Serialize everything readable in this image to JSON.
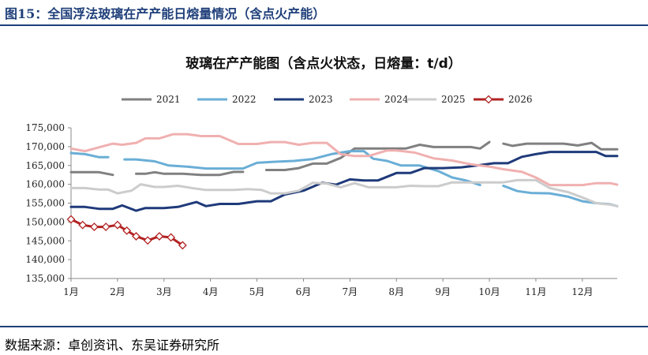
{
  "figure": {
    "title": "图15：全国浮法玻璃在产产能日熔量情况（含点火产能）",
    "source": "数据来源：卓创资讯、东吴证券研究所"
  },
  "chart_data": {
    "type": "line",
    "title": "玻璃在产产能图（含点火状态，日熔量：t/d）",
    "xlabel": "",
    "ylabel": "",
    "x_ticks": [
      "1月",
      "2月",
      "3月",
      "4月",
      "5月",
      "6月",
      "7月",
      "8月",
      "9月",
      "10月",
      "11月",
      "12月"
    ],
    "x_range": [
      1,
      12.75
    ],
    "ylim": [
      135000,
      175000
    ],
    "y_ticks": [
      135000,
      140000,
      145000,
      150000,
      155000,
      160000,
      165000,
      170000,
      175000
    ],
    "legend_position": "top",
    "grid": false,
    "series": [
      {
        "name": "2021",
        "color": "#808080",
        "marker": "none",
        "points": [
          [
            1.0,
            163200
          ],
          [
            1.3,
            163200
          ],
          [
            1.6,
            163200
          ],
          [
            1.9,
            162500
          ],
          null,
          [
            2.4,
            162800
          ],
          [
            2.6,
            162800
          ],
          [
            2.8,
            163200
          ],
          [
            3.0,
            162800
          ],
          [
            3.4,
            162800
          ],
          [
            3.8,
            162500
          ],
          [
            4.2,
            162500
          ],
          [
            4.5,
            163300
          ],
          [
            4.7,
            163300
          ],
          null,
          [
            5.2,
            163800
          ],
          [
            5.6,
            163800
          ],
          [
            5.9,
            164300
          ],
          [
            6.2,
            165500
          ],
          [
            6.5,
            165500
          ],
          [
            6.8,
            167000
          ],
          [
            7.1,
            169500
          ],
          [
            7.5,
            169500
          ],
          [
            7.9,
            169500
          ],
          [
            8.2,
            169500
          ],
          [
            8.5,
            170500
          ],
          [
            8.8,
            169900
          ],
          [
            9.2,
            169900
          ],
          [
            9.6,
            169900
          ],
          [
            9.8,
            169500
          ],
          [
            10.0,
            171200
          ],
          null,
          [
            10.3,
            170800
          ],
          [
            10.5,
            170200
          ],
          [
            10.8,
            170800
          ],
          [
            11.2,
            170800
          ],
          [
            11.6,
            170800
          ],
          [
            11.9,
            170300
          ],
          [
            12.2,
            171000
          ],
          [
            12.4,
            169300
          ],
          [
            12.75,
            169300
          ]
        ]
      },
      {
        "name": "2022",
        "color": "#6aaed6",
        "marker": "none",
        "points": [
          [
            1.0,
            168300
          ],
          [
            1.3,
            168000
          ],
          [
            1.6,
            167200
          ],
          [
            1.8,
            167200
          ],
          null,
          [
            2.15,
            166600
          ],
          [
            2.4,
            166600
          ],
          [
            2.8,
            166100
          ],
          [
            3.1,
            165000
          ],
          [
            3.5,
            164700
          ],
          [
            3.9,
            164200
          ],
          [
            4.3,
            164200
          ],
          [
            4.7,
            164200
          ],
          [
            5.0,
            165700
          ],
          [
            5.4,
            166000
          ],
          [
            5.8,
            166200
          ],
          [
            6.2,
            166700
          ],
          [
            6.6,
            168000
          ],
          [
            7.0,
            168800
          ],
          [
            7.3,
            168800
          ],
          [
            7.5,
            166800
          ],
          [
            7.8,
            166200
          ],
          [
            8.1,
            165000
          ],
          [
            8.5,
            165000
          ],
          [
            8.9,
            163500
          ],
          [
            9.2,
            161800
          ],
          [
            9.5,
            161000
          ],
          [
            9.8,
            159800
          ],
          null,
          [
            10.3,
            159600
          ],
          [
            10.6,
            158200
          ],
          [
            10.9,
            157700
          ],
          [
            11.3,
            157600
          ],
          [
            11.7,
            156700
          ],
          [
            12.0,
            155500
          ],
          [
            12.3,
            155000
          ],
          [
            12.6,
            154700
          ],
          [
            12.75,
            154200
          ]
        ]
      },
      {
        "name": "2023",
        "color": "#1f3a7a",
        "marker": "none",
        "points": [
          [
            1.0,
            154000
          ],
          [
            1.3,
            154000
          ],
          [
            1.6,
            153500
          ],
          [
            1.9,
            153500
          ],
          [
            2.1,
            154400
          ],
          [
            2.4,
            153000
          ],
          [
            2.6,
            153700
          ],
          [
            3.0,
            153700
          ],
          [
            3.3,
            154000
          ],
          [
            3.7,
            155300
          ],
          [
            3.9,
            154200
          ],
          [
            4.2,
            154800
          ],
          [
            4.6,
            154800
          ],
          [
            5.0,
            155500
          ],
          [
            5.3,
            155500
          ],
          [
            5.6,
            157300
          ],
          [
            6.0,
            158300
          ],
          [
            6.4,
            160400
          ],
          [
            6.7,
            159900
          ],
          [
            7.0,
            161300
          ],
          [
            7.3,
            161000
          ],
          [
            7.6,
            161000
          ],
          [
            8.0,
            163000
          ],
          [
            8.3,
            163000
          ],
          [
            8.6,
            164300
          ],
          [
            9.0,
            164300
          ],
          [
            9.4,
            164500
          ],
          [
            9.8,
            165100
          ],
          [
            10.1,
            165600
          ],
          [
            10.4,
            165600
          ],
          [
            10.7,
            167300
          ],
          [
            11.0,
            168000
          ],
          [
            11.3,
            168600
          ],
          [
            11.7,
            168600
          ],
          [
            12.0,
            168600
          ],
          [
            12.3,
            168600
          ],
          [
            12.5,
            167500
          ],
          [
            12.75,
            167500
          ]
        ]
      },
      {
        "name": "2024",
        "color": "#f0b0b0",
        "marker": "none",
        "points": [
          [
            1.0,
            169500
          ],
          [
            1.3,
            168800
          ],
          [
            1.6,
            169800
          ],
          [
            1.9,
            170800
          ],
          [
            2.1,
            170500
          ],
          [
            2.4,
            171000
          ],
          [
            2.6,
            172200
          ],
          [
            2.9,
            172200
          ],
          [
            3.2,
            173300
          ],
          [
            3.5,
            173300
          ],
          [
            3.8,
            172800
          ],
          [
            4.2,
            172800
          ],
          [
            4.6,
            170700
          ],
          [
            5.0,
            170700
          ],
          [
            5.3,
            171200
          ],
          [
            5.6,
            171200
          ],
          [
            5.9,
            170500
          ],
          [
            6.2,
            171000
          ],
          [
            6.5,
            171000
          ],
          [
            6.8,
            168000
          ],
          [
            7.1,
            167500
          ],
          [
            7.4,
            167500
          ],
          [
            7.8,
            169000
          ],
          [
            8.0,
            169000
          ],
          [
            8.4,
            168400
          ],
          [
            8.8,
            166900
          ],
          [
            9.2,
            166300
          ],
          [
            9.6,
            165300
          ],
          [
            10.0,
            164700
          ],
          [
            10.3,
            164000
          ],
          [
            10.7,
            163300
          ],
          [
            11.0,
            161800
          ],
          [
            11.3,
            159800
          ],
          [
            11.7,
            159800
          ],
          [
            12.0,
            159800
          ],
          [
            12.3,
            160300
          ],
          [
            12.6,
            160300
          ],
          [
            12.75,
            159900
          ]
        ]
      },
      {
        "name": "2025",
        "color": "#cccccc",
        "marker": "none",
        "points": [
          [
            1.0,
            159000
          ],
          [
            1.3,
            159000
          ],
          [
            1.6,
            158600
          ],
          [
            1.8,
            158600
          ],
          [
            2.0,
            157600
          ],
          [
            2.3,
            158300
          ],
          [
            2.5,
            160000
          ],
          [
            2.8,
            159300
          ],
          [
            3.0,
            159300
          ],
          [
            3.3,
            159600
          ],
          [
            3.6,
            159000
          ],
          [
            3.9,
            158500
          ],
          [
            4.2,
            158500
          ],
          [
            4.5,
            158500
          ],
          [
            4.8,
            158700
          ],
          [
            5.1,
            158500
          ],
          [
            5.3,
            157600
          ],
          [
            5.6,
            157600
          ],
          [
            5.9,
            158300
          ],
          [
            6.2,
            160400
          ],
          [
            6.5,
            160200
          ],
          [
            6.8,
            159200
          ],
          [
            7.1,
            160300
          ],
          [
            7.4,
            159200
          ],
          [
            7.7,
            159200
          ],
          [
            8.0,
            159200
          ],
          [
            8.3,
            159600
          ],
          [
            8.6,
            159500
          ],
          [
            8.9,
            159500
          ],
          [
            9.2,
            160500
          ],
          [
            9.6,
            160500
          ],
          [
            10.0,
            160500
          ],
          [
            10.3,
            160500
          ],
          [
            10.6,
            161100
          ],
          [
            11.0,
            161100
          ],
          [
            11.3,
            159000
          ],
          [
            11.7,
            157900
          ],
          [
            12.0,
            156500
          ],
          [
            12.3,
            155000
          ],
          [
            12.6,
            154600
          ],
          [
            12.75,
            154200
          ]
        ]
      },
      {
        "name": "2026",
        "color": "#b22222",
        "marker": "diamond",
        "points": [
          [
            1.0,
            150700
          ],
          [
            1.25,
            149200
          ],
          [
            1.5,
            148700
          ],
          [
            1.75,
            148700
          ],
          [
            2.0,
            149200
          ],
          [
            2.2,
            147700
          ],
          [
            2.4,
            146200
          ],
          [
            2.65,
            145100
          ],
          [
            2.9,
            146200
          ],
          [
            3.15,
            145900
          ],
          [
            3.4,
            143800
          ]
        ]
      }
    ]
  }
}
